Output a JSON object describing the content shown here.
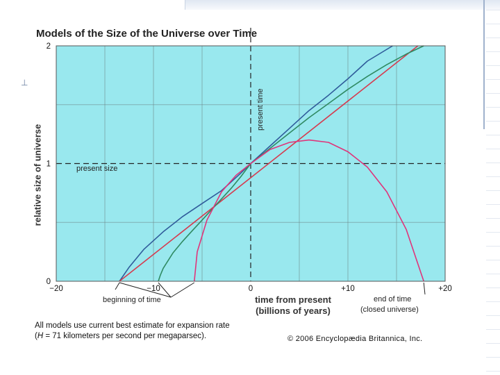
{
  "chart_data": {
    "type": "line",
    "title": "Models of the Size of the Universe over Time",
    "xlabel_line1": "time from present",
    "xlabel_line2": "(billions of years)",
    "ylabel": "relative size of universe",
    "xlim": [
      -20,
      20
    ],
    "ylim": [
      0,
      2
    ],
    "x_ticks": [
      {
        "value": -20,
        "label": "−20"
      },
      {
        "value": -10,
        "label": "−10"
      },
      {
        "value": 0,
        "label": "0"
      },
      {
        "value": 10,
        "label": "+10"
      },
      {
        "value": 20,
        "label": "+20"
      }
    ],
    "y_ticks": [
      {
        "value": 0,
        "label": "0"
      },
      {
        "value": 1,
        "label": "1"
      },
      {
        "value": 2,
        "label": "2"
      }
    ],
    "grid": true,
    "series": [
      {
        "color": "#2f5b9a",
        "x": [
          -13.5,
          -12.5,
          -11,
          -9,
          -7,
          -5,
          -3,
          -1,
          0,
          2,
          4,
          6,
          8,
          10,
          12,
          14.6
        ],
        "y": [
          0,
          0.12,
          0.27,
          0.42,
          0.55,
          0.66,
          0.77,
          0.92,
          1.0,
          1.15,
          1.3,
          1.45,
          1.58,
          1.72,
          1.87,
          2.0
        ]
      },
      {
        "color": "#d63a4e",
        "x": [
          -13.5,
          17.2
        ],
        "y": [
          0,
          2.0
        ]
      },
      {
        "color": "#2f8a62",
        "x": [
          -9.5,
          -9.3,
          -9,
          -8,
          -7,
          -6,
          -5,
          -4,
          -3,
          -2,
          -1,
          0,
          2,
          4,
          6,
          8,
          10,
          12,
          14,
          16,
          17.8
        ],
        "y": [
          0,
          0.05,
          0.11,
          0.24,
          0.34,
          0.43,
          0.52,
          0.61,
          0.7,
          0.79,
          0.89,
          1.0,
          1.13,
          1.26,
          1.39,
          1.51,
          1.63,
          1.74,
          1.84,
          1.93,
          2.0
        ]
      },
      {
        "color": "#e0347a",
        "x": [
          -5.8,
          -5.5,
          -4.5,
          -3,
          -1.5,
          0,
          2,
          4,
          6,
          8,
          10,
          12,
          14,
          16,
          17.8
        ],
        "y": [
          0,
          0.25,
          0.52,
          0.76,
          0.9,
          1.0,
          1.12,
          1.18,
          1.2,
          1.18,
          1.1,
          0.97,
          0.76,
          0.44,
          0
        ]
      }
    ],
    "reference_lines": [
      {
        "axis": "x",
        "value": 0,
        "label": "present time"
      },
      {
        "axis": "y",
        "value": 1,
        "label": "present size"
      }
    ],
    "annotations": [
      {
        "text": "beginning of time",
        "points_to_x": [
          -13.5,
          -9.5,
          -5.8
        ]
      },
      {
        "text": "end of time",
        "text2": "(closed universe)",
        "points_to_x": [
          17.8
        ]
      }
    ]
  },
  "note_line1": "All models use current best estimate for expansion rate",
  "note_line2_prefix": "(",
  "note_line2_italic": "H",
  "note_line2_rest": " = 71 kilometers per second per megaparsec).",
  "credit": "© 2006 Encyclopædia Britannica, Inc.",
  "side_mark": "⊥",
  "colors": {
    "plot_bg": "#99e8ee",
    "grid": "#6e8a8c",
    "frame": "#555555"
  }
}
